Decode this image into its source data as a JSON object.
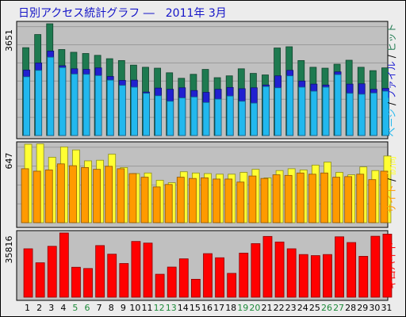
{
  "title": "日別アクセス統計グラフ ―　2011年 3月",
  "colors": {
    "panel_bg": "#c0c0c0",
    "hits": "#1e7a50",
    "files": "#2020d0",
    "pages": "#22b8ee",
    "visits": "#ffff33",
    "sites": "#ff9a00",
    "kbytes": "#ff0000",
    "weekday_label": "#000000",
    "weekend_label": "#1e8a3a",
    "label_sep": "#000000"
  },
  "chart_data": [
    {
      "type": "bar",
      "name": "traffic",
      "ymax_label": "3651",
      "ylim": [
        0,
        3651
      ],
      "categories": [
        "1",
        "2",
        "3",
        "4",
        "5",
        "6",
        "7",
        "8",
        "9",
        "10",
        "11",
        "12",
        "13",
        "14",
        "15",
        "16",
        "17",
        "18",
        "19",
        "20",
        "21",
        "22",
        "23",
        "24",
        "25",
        "26",
        "27",
        "28",
        "29",
        "30",
        "31"
      ],
      "series": [
        {
          "name": "ヒット",
          "color_key": "hits",
          "values": [
            2870,
            3300,
            3651,
            2810,
            2720,
            2680,
            2620,
            2510,
            2450,
            2300,
            2230,
            2200,
            2050,
            1870,
            2000,
            2160,
            1890,
            1950,
            2180,
            2030,
            1980,
            2860,
            2900,
            2450,
            2230,
            2200,
            2330,
            2460,
            2230,
            2120,
            2210
          ]
        },
        {
          "name": "ファイル",
          "color_key": "files",
          "values": [
            2140,
            2370,
            2760,
            2280,
            2180,
            2160,
            2210,
            1930,
            1800,
            1810,
            1420,
            1550,
            1510,
            1560,
            1470,
            1410,
            1510,
            1570,
            1530,
            1560,
            1650,
            1950,
            2130,
            1780,
            1680,
            1650,
            2080,
            1680,
            1690,
            1510,
            1540
          ]
        },
        {
          "name": "ページ",
          "color_key": "pages",
          "values": [
            1920,
            2130,
            2560,
            2220,
            2010,
            2000,
            1960,
            1810,
            1640,
            1580,
            1380,
            1300,
            1120,
            1230,
            1260,
            1080,
            1190,
            1290,
            1120,
            1060,
            1600,
            1560,
            1950,
            1580,
            1450,
            1580,
            1990,
            1380,
            1350,
            1390,
            1450
          ]
        }
      ]
    },
    {
      "type": "bar",
      "name": "visitors",
      "ymax_label": "647",
      "ylim": [
        0,
        647
      ],
      "categories": [
        "1",
        "2",
        "3",
        "4",
        "5",
        "6",
        "7",
        "8",
        "9",
        "10",
        "11",
        "12",
        "13",
        "14",
        "15",
        "16",
        "17",
        "18",
        "19",
        "20",
        "21",
        "22",
        "23",
        "24",
        "25",
        "26",
        "27",
        "28",
        "29",
        "30",
        "31"
      ],
      "series": [
        {
          "name": "訪問",
          "color_key": "visits",
          "values": [
            647,
            650,
            540,
            625,
            600,
            510,
            515,
            565,
            455,
            405,
            410,
            350,
            330,
            420,
            410,
            405,
            400,
            400,
            415,
            440,
            370,
            430,
            445,
            435,
            475,
            500,
            415,
            395,
            460,
            430,
            550
          ]
        },
        {
          "name": "サイト",
          "color_key": "sites",
          "values": [
            445,
            425,
            435,
            485,
            470,
            455,
            440,
            465,
            445,
            405,
            375,
            295,
            315,
            375,
            365,
            370,
            360,
            360,
            335,
            385,
            365,
            395,
            390,
            410,
            400,
            410,
            375,
            380,
            400,
            355,
            425
          ]
        }
      ]
    },
    {
      "type": "bar",
      "name": "kbytes",
      "ymax_label": "35816",
      "ylim": [
        0,
        35816
      ],
      "categories": [
        "1",
        "2",
        "3",
        "4",
        "5",
        "6",
        "7",
        "8",
        "9",
        "10",
        "11",
        "12",
        "13",
        "14",
        "15",
        "16",
        "17",
        "18",
        "19",
        "20",
        "21",
        "22",
        "23",
        "24",
        "25",
        "26",
        "27",
        "28",
        "29",
        "30",
        "31"
      ],
      "series": [
        {
          "name": "キロバイト",
          "color_key": "kbytes",
          "values": [
            27000,
            19200,
            28400,
            35816,
            16700,
            16000,
            28800,
            24000,
            18800,
            31100,
            30200,
            12800,
            16800,
            21400,
            10000,
            24300,
            22000,
            13300,
            24600,
            29900,
            33900,
            30800,
            27000,
            23800,
            23200,
            23800,
            33700,
            30500,
            22800,
            34000,
            35200
          ]
        }
      ]
    }
  ],
  "weekend_days": [
    "5",
    "6",
    "12",
    "13",
    "19",
    "20",
    "26",
    "27"
  ]
}
